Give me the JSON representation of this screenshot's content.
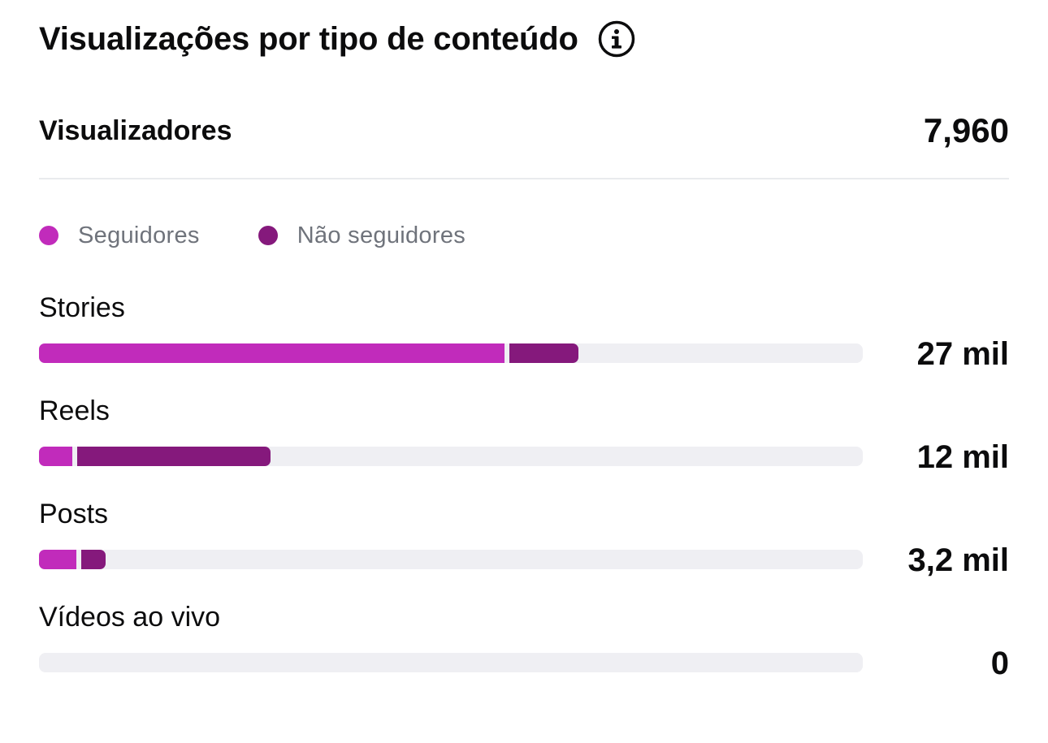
{
  "header": {
    "title": "Visualizações por tipo de conteúdo",
    "info_icon": "info-circle-icon"
  },
  "summary": {
    "label": "Visualizadores",
    "value": "7,960"
  },
  "legend": [
    {
      "label": "Seguidores",
      "color": "#c12bbb"
    },
    {
      "label": "Não seguidores",
      "color": "#85197c"
    }
  ],
  "chart_data": {
    "type": "bar",
    "orientation": "horizontal",
    "stacked": true,
    "categories": [
      "Stories",
      "Reels",
      "Posts",
      "Vídeos ao vivo"
    ],
    "value_labels": [
      "27 mil",
      "12 mil",
      "3,2 mil",
      "0"
    ],
    "series": [
      {
        "name": "Seguidores",
        "values": [
          0.565,
          0.04,
          0.045,
          0
        ]
      },
      {
        "name": "Não seguidores",
        "values": [
          0.084,
          0.235,
          0.03,
          0
        ]
      }
    ],
    "colors": {
      "followers": "#c12bbb",
      "non_followers": "#85197c",
      "track": "#efeff3"
    }
  }
}
